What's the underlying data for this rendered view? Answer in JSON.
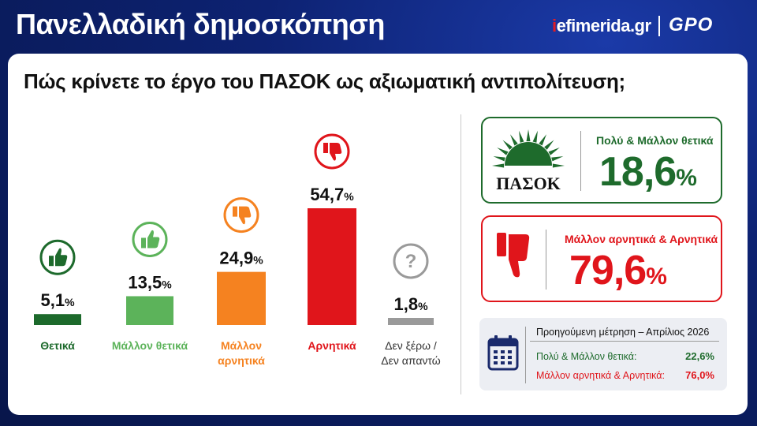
{
  "header": {
    "title": "Πανελλαδική δημοσκόπηση",
    "brand_site_prefix": "i",
    "brand_site": "efimerida.gr",
    "brand_pollster": "GPO"
  },
  "question": "Πώς κρίνετε το έργο του ΠΑΣΟΚ ως αξιωματική αντιπολίτευση;",
  "chart_data": {
    "type": "bar",
    "title": "Πώς κρίνετε το έργο του ΠΑΣΟΚ ως αξιωματική αντιπολίτευση;",
    "categories": [
      "Θετικά",
      "Μάλλον θετικά",
      "Μάλλον αρνητικά",
      "Αρνητικά",
      "Δεν ξέρω / Δεν απαντώ"
    ],
    "category_lines": [
      [
        "Θετικά"
      ],
      [
        "Μάλλον θετικά"
      ],
      [
        "Μάλλον",
        "αρνητικά"
      ],
      [
        "Αρνητικά"
      ],
      [
        "Δεν ξέρω /",
        "Δεν απαντώ"
      ]
    ],
    "values": [
      5.1,
      13.5,
      24.9,
      54.7,
      1.8
    ],
    "value_labels": [
      "5,1",
      "13,5",
      "24,9",
      "54,7",
      "1,8"
    ],
    "unit": "%",
    "colors": [
      "#1d6a2c",
      "#5cb35a",
      "#f58220",
      "#e0151b",
      "#9a9a9a"
    ],
    "icons": [
      "thumbs-up-icon",
      "thumbs-up-icon",
      "thumbs-down-icon",
      "thumbs-down-icon",
      "question-icon"
    ],
    "ylim": [
      0,
      60
    ],
    "grid": false,
    "legend": "none"
  },
  "summary": {
    "party_logo_text": "ΠΑΣΟΚ",
    "positive": {
      "label": "Πολύ & Μάλλον θετικά",
      "value": "18,6",
      "unit": "%",
      "color": "#1e6b2c"
    },
    "negative": {
      "label": "Μάλλον αρνητικά & Αρνητικά",
      "value": "79,6",
      "unit": "%",
      "color": "#e0151b"
    }
  },
  "previous": {
    "title": "Προηγούμενη μέτρηση – Απρίλιος 2026",
    "rows": [
      {
        "label": "Πολύ & Μάλλον θετικά:",
        "value": "22,6%",
        "color": "#1e6b2c"
      },
      {
        "label": "Μάλλον αρνητικά & Αρνητικά:",
        "value": "76,0%",
        "color": "#e0151b"
      }
    ]
  }
}
